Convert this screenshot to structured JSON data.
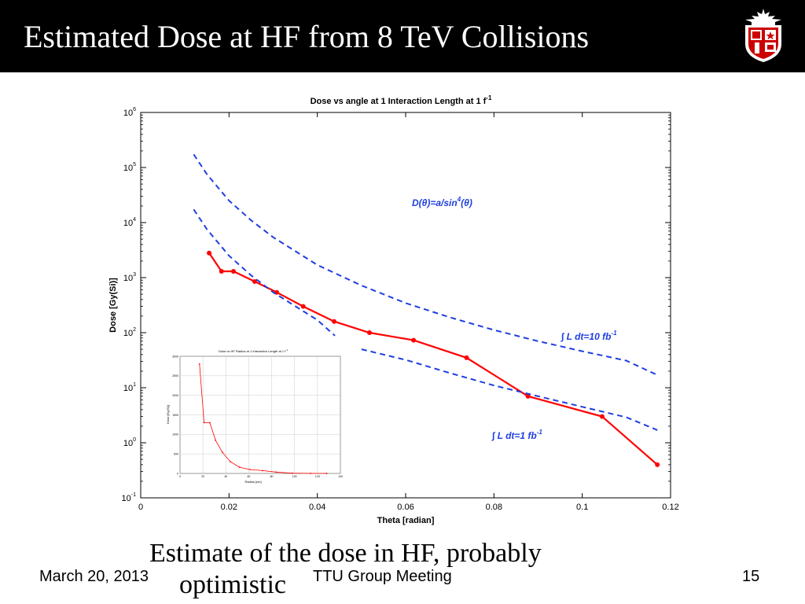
{
  "slide": {
    "title": "Estimated Dose at HF from 8 TeV Collisions",
    "caption_line1": "Estimate of the dose in HF, probably",
    "caption_line2": "optimistic",
    "footer_date": "March 20, 2013",
    "footer_center": "TTU Group Meeting",
    "footer_page": "15",
    "logo_icon": "university-shield-icon"
  },
  "chart_data": [
    {
      "type": "line",
      "title": "Dose vs angle at 1 Interaction Length at 1 f",
      "title_sup": "-1",
      "xlabel": "Theta [radian]",
      "ylabel": "Dose [Gy(Si)]",
      "xlim": [
        0,
        0.12
      ],
      "ylim": [
        0.1,
        1000000
      ],
      "yscale": "log",
      "xticks": [
        "0",
        "0.02",
        "0.04",
        "0.06",
        "0.08",
        "0.1",
        "0.12"
      ],
      "yticks": [
        {
          "base": "10",
          "exp": "-1"
        },
        {
          "base": "10",
          "exp": "0"
        },
        {
          "base": "10",
          "exp": "1"
        },
        {
          "base": "10",
          "exp": "2"
        },
        {
          "base": "10",
          "exp": "3"
        },
        {
          "base": "10",
          "exp": "4"
        },
        {
          "base": "10",
          "exp": "5"
        },
        {
          "base": "10",
          "exp": "6"
        }
      ],
      "grid": false,
      "colors": {
        "data": "#ff0000",
        "fit": "#1f3fdf",
        "annotation": "#1f3fdf"
      },
      "series": [
        {
          "style": "solid-with-markers",
          "x": [
            0.0155,
            0.0183,
            0.021,
            0.0258,
            0.0308,
            0.0368,
            0.0438,
            0.0518,
            0.0618,
            0.0738,
            0.0877,
            0.1045,
            0.117
          ],
          "y": [
            2800,
            1300,
            1300,
            850,
            540,
            300,
            160,
            100,
            73,
            35,
            7,
            3,
            0.4
          ]
        },
        {
          "name": "∫ L dt=10 fb-1",
          "style": "dashed",
          "x": [
            0.012,
            0.015,
            0.02,
            0.025,
            0.03,
            0.04,
            0.05,
            0.06,
            0.07,
            0.08,
            0.09,
            0.1,
            0.11,
            0.117
          ],
          "y": [
            173000,
            75000,
            25000,
            11000,
            5400,
            1700,
            720,
            345,
            190,
            112,
            70,
            46,
            31,
            17
          ]
        },
        {
          "name": "∫ L dt=1 fb-1",
          "style": "dashed",
          "x": [
            0.012,
            0.015,
            0.02,
            0.025,
            0.03,
            0.04,
            0.044,
            0.05,
            0.06,
            0.07,
            0.08,
            0.09,
            0.1,
            0.11,
            0.117
          ],
          "y": [
            17300,
            7500,
            2500,
            1100,
            540,
            170,
            88,
            50,
            32,
            18.5,
            11,
            7,
            4.5,
            2.9,
            1.7
          ],
          "gap_after_index": 6
        }
      ],
      "annotations": [
        {
          "text": "D(θ)=a/sin",
          "sup": "4",
          "text2": "(θ)"
        },
        {
          "text": "∫ L dt=10 fb",
          "sup": "-1"
        },
        {
          "text": "∫ L dt=1 fb",
          "sup": "-1"
        }
      ]
    },
    {
      "type": "line",
      "title": "Dose vs HF Radius at 1 Interaction Length at 1 f",
      "title_sup": "-1",
      "xlabel": "Radius [cm]",
      "ylabel": "Dose [Gy(Si)]",
      "xlim": [
        0,
        140
      ],
      "ylim": [
        0,
        3000
      ],
      "xticks": [
        "0",
        "20",
        "40",
        "60",
        "80",
        "100",
        "120",
        "140"
      ],
      "yticks": [
        "0",
        "500",
        "1000",
        "1500",
        "2000",
        "2500",
        "3000"
      ],
      "grid": true,
      "series": [
        {
          "style": "solid-with-markers",
          "x": [
            17,
            21,
            26,
            31,
            37,
            44,
            52,
            61,
            72,
            84,
            98,
            114,
            128
          ],
          "y": [
            2800,
            1300,
            1300,
            850,
            540,
            300,
            160,
            100,
            73,
            35,
            7,
            3,
            1
          ]
        }
      ]
    }
  ]
}
